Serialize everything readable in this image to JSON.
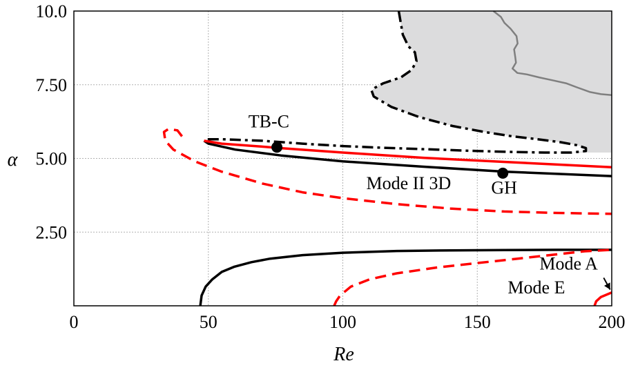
{
  "chart_data": {
    "type": "line",
    "title": "",
    "xlabel": "Re",
    "ylabel": "α",
    "xlim": [
      0,
      200
    ],
    "ylim": [
      0,
      10
    ],
    "x_ticks": [
      0,
      50,
      100,
      150,
      200
    ],
    "x_tick_labels": [
      "0",
      "50",
      "100",
      "150",
      "200"
    ],
    "y_ticks": [
      2.5,
      5.0,
      7.5,
      10.0
    ],
    "y_tick_labels": [
      "2.50",
      "5.00",
      "7.50",
      "10.0"
    ],
    "grid": true,
    "shaded_region": {
      "color": "#dcdcdd",
      "boundary": [
        [
          120.8,
          10.0
        ],
        [
          122.3,
          9.2
        ],
        [
          124.4,
          8.8
        ],
        [
          126.8,
          8.6
        ],
        [
          127.4,
          8.3
        ],
        [
          125.6,
          8.0
        ],
        [
          121.6,
          7.75
        ],
        [
          115.1,
          7.55
        ],
        [
          112.0,
          7.4
        ],
        [
          110.7,
          7.3
        ],
        [
          111.5,
          7.1
        ],
        [
          118.0,
          6.75
        ],
        [
          128.5,
          6.4
        ],
        [
          140.8,
          6.1
        ],
        [
          152.5,
          5.9
        ],
        [
          163.0,
          5.75
        ],
        [
          172.5,
          5.65
        ],
        [
          181.0,
          5.55
        ],
        [
          187.0,
          5.45
        ],
        [
          190.4,
          5.35
        ],
        [
          190.4,
          5.25
        ],
        [
          185.0,
          5.2
        ],
        [
          175.0,
          5.2
        ],
        [
          163.0,
          5.22
        ],
        [
          150.0,
          5.25
        ],
        [
          135.0,
          5.3
        ],
        [
          115.0,
          5.36
        ],
        [
          100.0,
          5.42
        ],
        [
          85.0,
          5.5
        ],
        [
          70.0,
          5.6
        ],
        [
          55.0,
          5.65
        ],
        [
          49.6,
          5.65
        ]
      ]
    },
    "series": [
      {
        "color": "#000000",
        "style": "dashdot",
        "points": [
          [
            120.8,
            10.0
          ],
          [
            122.3,
            9.2
          ],
          [
            124.4,
            8.8
          ],
          [
            126.8,
            8.6
          ],
          [
            127.4,
            8.3
          ],
          [
            125.6,
            8.0
          ],
          [
            121.6,
            7.75
          ],
          [
            115.1,
            7.55
          ],
          [
            112.0,
            7.4
          ],
          [
            110.7,
            7.3
          ],
          [
            111.5,
            7.1
          ],
          [
            118.0,
            6.75
          ],
          [
            128.5,
            6.4
          ],
          [
            140.8,
            6.1
          ],
          [
            152.5,
            5.9
          ],
          [
            163.0,
            5.75
          ],
          [
            172.5,
            5.65
          ],
          [
            181.0,
            5.55
          ],
          [
            187.0,
            5.45
          ],
          [
            190.4,
            5.35
          ],
          [
            190.4,
            5.25
          ],
          [
            185.0,
            5.2
          ],
          [
            175.0,
            5.2
          ],
          [
            163.0,
            5.22
          ],
          [
            150.0,
            5.25
          ],
          [
            135.0,
            5.3
          ],
          [
            115.0,
            5.36
          ],
          [
            100.0,
            5.42
          ],
          [
            85.0,
            5.5
          ],
          [
            70.0,
            5.6
          ],
          [
            55.0,
            5.65
          ],
          [
            49.6,
            5.65
          ]
        ]
      },
      {
        "color": "#7f7f7f",
        "style": "solid",
        "points": [
          [
            156.0,
            10.0
          ],
          [
            158.8,
            9.8
          ],
          [
            160.1,
            9.6
          ],
          [
            162.4,
            9.4
          ],
          [
            164.6,
            9.15
          ],
          [
            165.0,
            8.9
          ],
          [
            163.7,
            8.7
          ],
          [
            164.1,
            8.45
          ],
          [
            164.4,
            8.25
          ],
          [
            163.1,
            8.05
          ],
          [
            164.9,
            7.9
          ],
          [
            168.5,
            7.85
          ],
          [
            173.0,
            7.75
          ],
          [
            178.0,
            7.65
          ],
          [
            183.0,
            7.55
          ],
          [
            187.4,
            7.4
          ],
          [
            192.0,
            7.25
          ],
          [
            196.0,
            7.18
          ],
          [
            200.0,
            7.15
          ]
        ]
      },
      {
        "color": "#000000",
        "style": "solid",
        "points": [
          [
            48.4,
            5.6
          ],
          [
            50.0,
            5.5
          ],
          [
            60.0,
            5.3
          ],
          [
            77.0,
            5.1
          ],
          [
            100.0,
            4.9
          ],
          [
            130.0,
            4.72
          ],
          [
            160.5,
            4.55
          ],
          [
            200.0,
            4.4
          ]
        ]
      },
      {
        "color": "#ff0000",
        "style": "solid",
        "points": [
          [
            48.4,
            5.6
          ],
          [
            55.0,
            5.5
          ],
          [
            70.0,
            5.4
          ],
          [
            77.0,
            5.35
          ],
          [
            100.0,
            5.2
          ],
          [
            130.0,
            5.02
          ],
          [
            160.5,
            4.88
          ],
          [
            200.0,
            4.7
          ]
        ]
      },
      {
        "color": "#ff0000",
        "style": "dashed",
        "points": [
          [
            40.2,
            5.75
          ],
          [
            38.5,
            5.95
          ],
          [
            35.2,
            6.0
          ],
          [
            33.5,
            5.9
          ],
          [
            34.0,
            5.6
          ],
          [
            37.0,
            5.3
          ],
          [
            45.0,
            4.9
          ],
          [
            55.0,
            4.55
          ],
          [
            70.0,
            4.15
          ],
          [
            85.0,
            3.85
          ],
          [
            100.0,
            3.65
          ],
          [
            120.0,
            3.45
          ],
          [
            140.0,
            3.3
          ],
          [
            160.0,
            3.2
          ],
          [
            180.0,
            3.15
          ],
          [
            200.0,
            3.12
          ]
        ]
      },
      {
        "color": "#000000",
        "style": "solid",
        "points": [
          [
            47.0,
            0.0
          ],
          [
            47.5,
            0.35
          ],
          [
            49.0,
            0.65
          ],
          [
            51.5,
            0.9
          ],
          [
            55.0,
            1.15
          ],
          [
            59.5,
            1.32
          ],
          [
            66.0,
            1.48
          ],
          [
            73.0,
            1.6
          ],
          [
            85.0,
            1.72
          ],
          [
            100.0,
            1.8
          ],
          [
            120.0,
            1.86
          ],
          [
            140.0,
            1.88
          ],
          [
            160.0,
            1.89
          ],
          [
            180.0,
            1.9
          ],
          [
            200.0,
            1.9
          ]
        ]
      },
      {
        "color": "#ff0000",
        "style": "dashed",
        "points": [
          [
            96.8,
            0.0
          ],
          [
            97.5,
            0.15
          ],
          [
            99.0,
            0.35
          ],
          [
            103.0,
            0.65
          ],
          [
            110.0,
            0.9
          ],
          [
            120.0,
            1.1
          ],
          [
            135.0,
            1.3
          ],
          [
            150.0,
            1.45
          ],
          [
            165.0,
            1.6
          ],
          [
            180.0,
            1.75
          ],
          [
            190.0,
            1.85
          ],
          [
            200.0,
            1.9
          ]
        ]
      },
      {
        "color": "#ff0000",
        "style": "solid",
        "points": [
          [
            193.6,
            0.0
          ],
          [
            194.2,
            0.15
          ],
          [
            196.0,
            0.3
          ],
          [
            200.0,
            0.45
          ]
        ]
      }
    ],
    "points": [
      {
        "x": 75.5,
        "y": 5.38
      },
      {
        "x": 159.5,
        "y": 4.5
      }
    ],
    "annotations": [
      {
        "text": "TB-C",
        "x": 72.5,
        "y": 6.05
      },
      {
        "text": "GH",
        "x": 160.0,
        "y": 3.8
      },
      {
        "text": "Mode II 3D",
        "x": 124.5,
        "y": 3.96
      },
      {
        "text": "Mode A",
        "x": 184.0,
        "y": 1.23
      },
      {
        "text": "Mode E",
        "x": 172.0,
        "y": 0.42
      }
    ],
    "arrow": {
      "from": [
        197.0,
        0.95
      ],
      "to": [
        199.4,
        0.55
      ]
    }
  }
}
